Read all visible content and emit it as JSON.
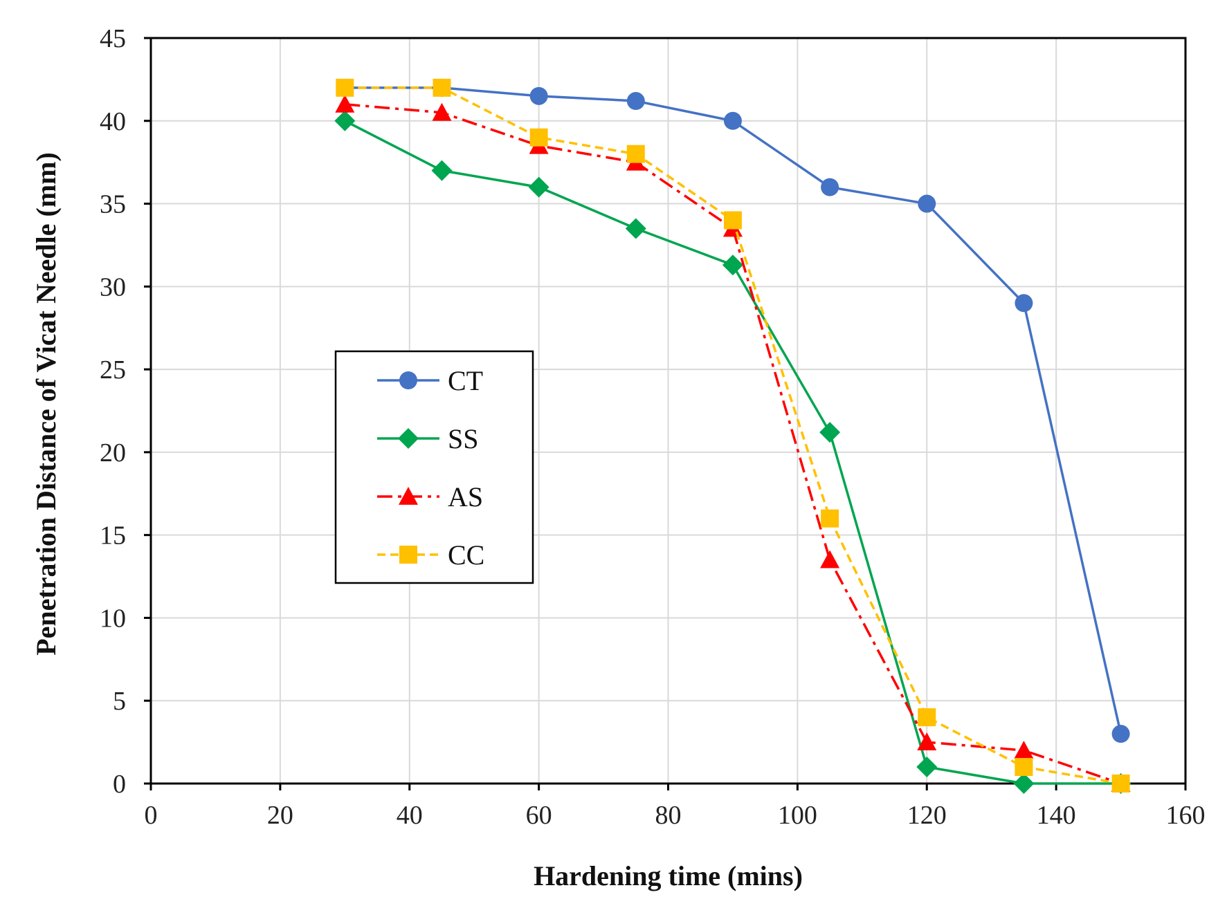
{
  "chart_data": {
    "type": "line",
    "title": "",
    "xlabel": "Hardening time (mins)",
    "ylabel": "Penetration Distance of  Vicat Needle (mm)",
    "xlim": [
      0,
      160
    ],
    "ylim": [
      0,
      45
    ],
    "xticks": [
      0,
      20,
      40,
      60,
      80,
      100,
      120,
      140,
      160
    ],
    "yticks": [
      0,
      5,
      10,
      15,
      20,
      25,
      30,
      35,
      40,
      45
    ],
    "grid": true,
    "legend_position": "center-left",
    "x": [
      30,
      45,
      60,
      75,
      90,
      105,
      120,
      135,
      150
    ],
    "series": [
      {
        "name": "CT",
        "color": "#4472C4",
        "marker": "circle",
        "dash": "solid",
        "values": [
          42,
          42,
          41.5,
          41.2,
          40,
          36,
          35,
          29,
          3
        ]
      },
      {
        "name": "SS",
        "color": "#00A550",
        "marker": "diamond",
        "dash": "solid",
        "values": [
          40,
          37,
          36,
          33.5,
          31.3,
          21.2,
          1,
          0,
          0
        ]
      },
      {
        "name": "AS",
        "color": "#FF0000",
        "marker": "triangle",
        "dash": "dashdot",
        "values": [
          41,
          40.5,
          38.5,
          37.5,
          33.5,
          13.5,
          2.5,
          2,
          0
        ]
      },
      {
        "name": "CC",
        "color": "#FFC000",
        "marker": "square",
        "dash": "dashed",
        "values": [
          42,
          42,
          39,
          38,
          34,
          16,
          4,
          1,
          0
        ]
      }
    ]
  }
}
